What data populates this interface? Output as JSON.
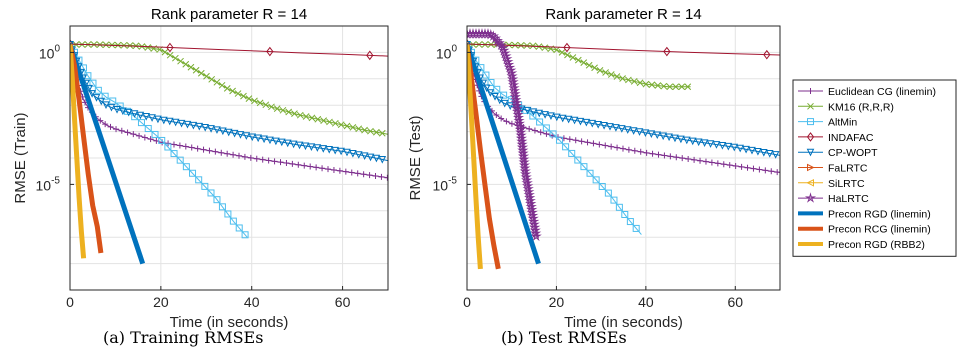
{
  "captions": [
    "(a) Training RMSEs",
    "(b) Test RMSEs"
  ],
  "legend_entries": [
    {
      "name": "Euclidean CG (linemin)",
      "color": "#7E2F8E",
      "marker": "plus"
    },
    {
      "name": "KM16 (R,R,R)",
      "color": "#77AC30",
      "marker": "x"
    },
    {
      "name": "AltMin",
      "color": "#4DBEEE",
      "marker": "square"
    },
    {
      "name": "INDAFAC",
      "color": "#A2142F",
      "marker": "diamond"
    },
    {
      "name": "CP-WOPT",
      "color": "#0072BD",
      "marker": "tri-down"
    },
    {
      "name": "FaLRTC",
      "color": "#D95319",
      "marker": "tri-right"
    },
    {
      "name": "SiLRTC",
      "color": "#EDB120",
      "marker": "tri-left"
    },
    {
      "name": "HaLRTC",
      "color": "#7E2F8E",
      "marker": "star"
    },
    {
      "name": "Precon RGD (linemin)",
      "color": "#0072BD",
      "marker": "none"
    },
    {
      "name": "Precon RCG (linemin)",
      "color": "#D95319",
      "marker": "none"
    },
    {
      "name": "Precon RGD (RBB2)",
      "color": "#EDB120",
      "marker": "none"
    }
  ],
  "chart_data": [
    {
      "type": "line",
      "title": "Rank parameter R = 14",
      "xlabel": "Time (in seconds)",
      "ylabel": "RMSE (Train)",
      "xlim": [
        0,
        70
      ],
      "ylim_log10": [
        -9,
        1
      ],
      "yscale": "log",
      "xticks": [
        0,
        20,
        40,
        60
      ],
      "xtick_labels": [
        "0",
        "20",
        "40",
        "60"
      ],
      "yticks_log10": [
        0,
        -5
      ],
      "ytick_labels": [
        [
          "10",
          "0"
        ],
        [
          "10",
          "-5"
        ]
      ],
      "grid": true,
      "series": [
        {
          "name": "Euclidean CG (linemin)",
          "x": [
            0,
            1,
            2,
            3,
            4,
            5,
            6,
            8,
            10,
            14,
            20,
            30,
            40,
            50,
            60,
            70
          ],
          "y_log10": [
            0.3,
            -0.5,
            -1.3,
            -1.8,
            -2.1,
            -2.3,
            -2.5,
            -2.75,
            -2.9,
            -3.1,
            -3.4,
            -3.7,
            -4.0,
            -4.25,
            -4.5,
            -4.75
          ]
        },
        {
          "name": "KM16 (R,R,R)",
          "x": [
            0,
            5,
            10,
            15,
            20,
            25,
            30,
            35,
            40,
            45,
            50,
            55,
            60,
            65,
            70
          ],
          "y_log10": [
            0.3,
            0.3,
            0.28,
            0.25,
            0.1,
            -0.4,
            -0.9,
            -1.4,
            -1.8,
            -2.1,
            -2.35,
            -2.55,
            -2.75,
            -2.95,
            -3.1
          ]
        },
        {
          "name": "AltMin",
          "x": [
            0,
            2,
            4,
            6,
            8,
            10,
            14,
            20,
            26,
            32,
            36,
            39
          ],
          "y_log10": [
            0.3,
            -0.3,
            -0.9,
            -1.4,
            -1.7,
            -1.9,
            -2.4,
            -3.3,
            -4.4,
            -5.5,
            -6.4,
            -7.0
          ]
        },
        {
          "name": "INDAFAC",
          "x": [
            0,
            10,
            20,
            30,
            34,
            40,
            50,
            56.5,
            60,
            70
          ],
          "y_log10": [
            0.32,
            0.26,
            0.2,
            0.13,
            0.1,
            0.06,
            -0.01,
            -0.05,
            -0.07,
            -0.14
          ]
        },
        {
          "name": "CP-WOPT",
          "x": [
            0,
            3,
            5,
            8,
            10,
            16,
            20,
            30,
            40,
            50,
            60,
            70
          ],
          "y_log10": [
            0.3,
            -1.0,
            -1.6,
            -2.0,
            -2.15,
            -2.4,
            -2.55,
            -2.85,
            -3.2,
            -3.5,
            -3.75,
            -4.1
          ]
        },
        {
          "name": "FaLRTC",
          "x": [],
          "y_log10": []
        },
        {
          "name": "SiLRTC",
          "x": [],
          "y_log10": []
        },
        {
          "name": "HaLRTC",
          "x": [],
          "y_log10": []
        },
        {
          "name": "Precon RGD (linemin)",
          "x": [
            0,
            16
          ],
          "y_log10": [
            0.3,
            -8.0
          ]
        },
        {
          "name": "Precon RCG (linemin)",
          "x": [
            0,
            1,
            2,
            3,
            4,
            5,
            6,
            6.8
          ],
          "y_log10": [
            0.3,
            -0.5,
            -1.8,
            -3.2,
            -4.6,
            -5.8,
            -6.6,
            -7.6
          ]
        },
        {
          "name": "Precon RGD (RBB2)",
          "x": [
            0,
            0.5,
            1,
            1.5,
            2,
            2.5,
            3
          ],
          "y_log10": [
            0.3,
            -1.0,
            -2.5,
            -4.0,
            -5.5,
            -6.8,
            -7.8
          ]
        }
      ]
    },
    {
      "type": "line",
      "title": "Rank parameter R = 14",
      "xlabel": "Time (in seconds)",
      "ylabel": "RMSE (Test)",
      "xlim": [
        0,
        70
      ],
      "ylim_log10": [
        -9,
        1
      ],
      "yscale": "log",
      "xticks": [
        0,
        20,
        40,
        60
      ],
      "xtick_labels": [
        "0",
        "20",
        "40",
        "60"
      ],
      "yticks_log10": [
        0,
        -5
      ],
      "ytick_labels": [
        [
          "10",
          "0"
        ],
        [
          "10",
          "-5"
        ]
      ],
      "grid": true,
      "series": [
        {
          "name": "Euclidean CG (linemin)",
          "x": [
            0,
            1,
            2,
            3,
            4,
            5,
            6,
            8,
            10,
            14,
            20,
            30,
            40,
            50,
            60,
            70
          ],
          "y_log10": [
            0.3,
            -0.4,
            -1.1,
            -1.6,
            -1.9,
            -2.1,
            -2.3,
            -2.55,
            -2.7,
            -2.9,
            -3.2,
            -3.5,
            -3.8,
            -4.05,
            -4.3,
            -4.55
          ]
        },
        {
          "name": "KM16 (R,R,R)",
          "x": [
            0,
            5,
            10,
            15,
            20,
            25,
            30,
            35,
            40,
            45,
            50
          ],
          "y_log10": [
            0.3,
            0.3,
            0.28,
            0.25,
            0.1,
            -0.3,
            -0.7,
            -1.0,
            -1.2,
            -1.3,
            -1.3
          ]
        },
        {
          "name": "AltMin",
          "x": [
            0,
            2,
            4,
            6,
            8,
            10,
            14,
            20,
            26,
            32,
            36,
            39
          ],
          "y_log10": [
            0.3,
            -0.3,
            -0.8,
            -1.3,
            -1.6,
            -1.8,
            -2.3,
            -3.2,
            -4.3,
            -5.4,
            -6.3,
            -6.9
          ]
        },
        {
          "name": "INDAFAC",
          "x": [
            0,
            10,
            20,
            30,
            34,
            40,
            50,
            56.5,
            60,
            70
          ],
          "y_log10": [
            0.32,
            0.26,
            0.2,
            0.13,
            0.1,
            0.06,
            0.0,
            -0.03,
            -0.05,
            -0.1
          ]
        },
        {
          "name": "CP-WOPT",
          "x": [
            0,
            3,
            5,
            8,
            10,
            16,
            20,
            30,
            40,
            50,
            60,
            70
          ],
          "y_log10": [
            0.3,
            -1.0,
            -1.5,
            -1.9,
            -2.05,
            -2.3,
            -2.45,
            -2.75,
            -3.05,
            -3.35,
            -3.6,
            -3.9
          ]
        },
        {
          "name": "FaLRTC",
          "x": [],
          "y_log10": []
        },
        {
          "name": "SiLRTC",
          "x": [],
          "y_log10": []
        },
        {
          "name": "HaLRTC",
          "x": [
            0,
            3,
            5,
            6,
            8,
            10,
            12,
            13,
            14,
            15,
            15.5
          ],
          "y_log10": [
            0.7,
            0.7,
            0.7,
            0.6,
            0.2,
            -0.8,
            -3.0,
            -4.5,
            -5.5,
            -6.5,
            -7.0
          ]
        },
        {
          "name": "Precon RGD (linemin)",
          "x": [
            0,
            16
          ],
          "y_log10": [
            0.3,
            -8.0
          ]
        },
        {
          "name": "Precon RCG (linemin)",
          "x": [
            0,
            1,
            2,
            3,
            4,
            5,
            6,
            7
          ],
          "y_log10": [
            0.3,
            -1.0,
            -2.3,
            -3.7,
            -5.0,
            -6.3,
            -7.3,
            -8.2
          ]
        },
        {
          "name": "Precon RGD (RBB2)",
          "x": [
            0,
            0.5,
            1,
            1.5,
            2,
            2.5,
            3
          ],
          "y_log10": [
            0.3,
            -1.0,
            -2.5,
            -4.0,
            -5.5,
            -7.0,
            -8.2
          ]
        }
      ]
    }
  ]
}
